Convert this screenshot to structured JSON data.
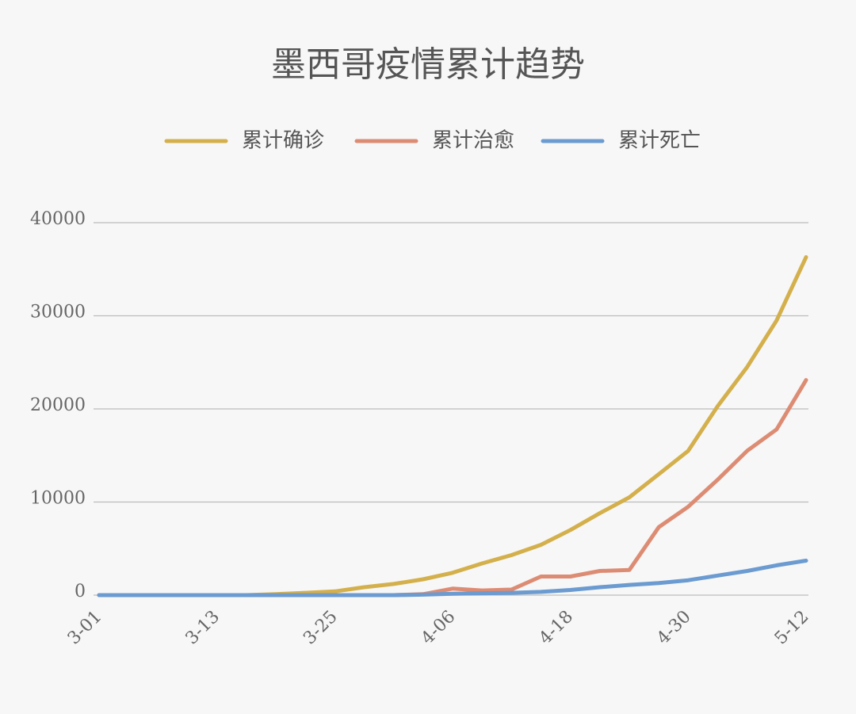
{
  "chart_data": {
    "type": "line",
    "title": "墨西哥疫情累计趋势",
    "categories": [
      "3-01",
      null,
      null,
      null,
      "3-13",
      null,
      null,
      null,
      "3-25",
      null,
      null,
      null,
      "4-06",
      null,
      null,
      null,
      "4-18",
      null,
      null,
      null,
      "4-30",
      null,
      null,
      null,
      "5-12"
    ],
    "series": [
      {
        "name": "累计确诊",
        "color": "#d4b04c",
        "values": [
          0,
          0,
          0,
          0,
          0,
          0,
          100,
          250,
          400,
          850,
          1200,
          1700,
          2400,
          3400,
          4300,
          5400,
          7000,
          8800,
          10500,
          13000,
          15500,
          20300,
          24500,
          29500,
          36300
        ]
      },
      {
        "name": "累计治愈",
        "color": "#dd8c74",
        "values": [
          0,
          0,
          0,
          0,
          0,
          0,
          0,
          0,
          0,
          0,
          0,
          100,
          700,
          500,
          600,
          2000,
          2000,
          2600,
          2700,
          7300,
          9500,
          12400,
          15500,
          17800,
          23100
        ]
      },
      {
        "name": "累计死亡",
        "color": "#6b9bd0",
        "values": [
          0,
          0,
          0,
          0,
          0,
          0,
          0,
          0,
          0,
          0,
          0,
          50,
          150,
          200,
          250,
          350,
          550,
          850,
          1100,
          1300,
          1600,
          2100,
          2600,
          3200,
          3700
        ]
      }
    ],
    "ylim": [
      0,
      40000
    ],
    "yticks": [
      0,
      10000,
      20000,
      30000,
      40000
    ],
    "grid": true
  }
}
